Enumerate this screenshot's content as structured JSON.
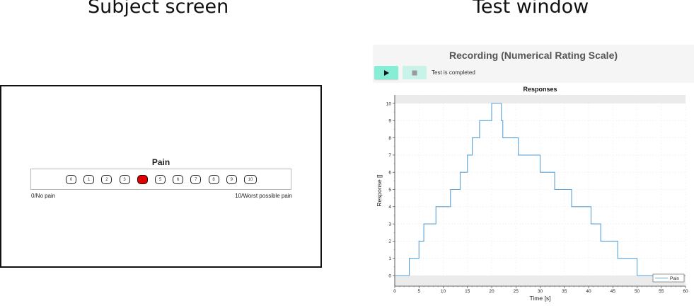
{
  "titles": {
    "subject": "Subject screen",
    "test": "Test window"
  },
  "subject_screen": {
    "scale_title": "Pain",
    "buttons": [
      "0",
      "1",
      "2",
      "3",
      "4",
      "5",
      "6",
      "7",
      "8",
      "9",
      "10"
    ],
    "selected_index": 4,
    "selected_color": "#e00000",
    "min_anchor": "0/No pain",
    "max_anchor": "10/Worst possible pain"
  },
  "test_window": {
    "title": "Recording (Numerical Rating Scale)",
    "play_icon": "play-icon",
    "stop_icon": "stop-icon",
    "status": "Test is completed",
    "accent": "#86eed5"
  },
  "chart_data": {
    "type": "line",
    "title": "Responses",
    "xlabel": "Time [s]",
    "ylabel": "Response []",
    "xlim": [
      0,
      60
    ],
    "ylim": [
      0,
      10
    ],
    "xticks": [
      0,
      5,
      10,
      15,
      20,
      25,
      30,
      35,
      40,
      45,
      50,
      55,
      60
    ],
    "yticks": [
      0,
      1,
      2,
      3,
      4,
      5,
      6,
      7,
      8,
      9,
      10
    ],
    "legend": "Pain",
    "legend_position": "bottom-right",
    "series_color": "#5ba3d6",
    "series": [
      {
        "name": "Pain",
        "x": [
          0,
          3,
          3,
          5,
          5,
          6,
          6,
          8.5,
          8.5,
          11.5,
          11.5,
          13.5,
          13.5,
          15,
          15,
          16,
          16,
          17.5,
          17.5,
          18,
          18,
          20,
          20,
          22,
          22,
          22.3,
          22.3,
          25.5,
          25.5,
          30,
          30,
          33,
          33,
          36.5,
          36.5,
          40.5,
          40.5,
          42.5,
          42.5,
          46,
          46,
          50,
          50,
          60
        ],
        "y": [
          0,
          0,
          1,
          1,
          2,
          2,
          3,
          3,
          4,
          4,
          5,
          5,
          6,
          6,
          7,
          7,
          8,
          8,
          9,
          9,
          9,
          9,
          10,
          10,
          9,
          9,
          8,
          8,
          7,
          7,
          6,
          6,
          5,
          5,
          4,
          4,
          3,
          3,
          2,
          2,
          1,
          1,
          0,
          0
        ]
      }
    ]
  }
}
